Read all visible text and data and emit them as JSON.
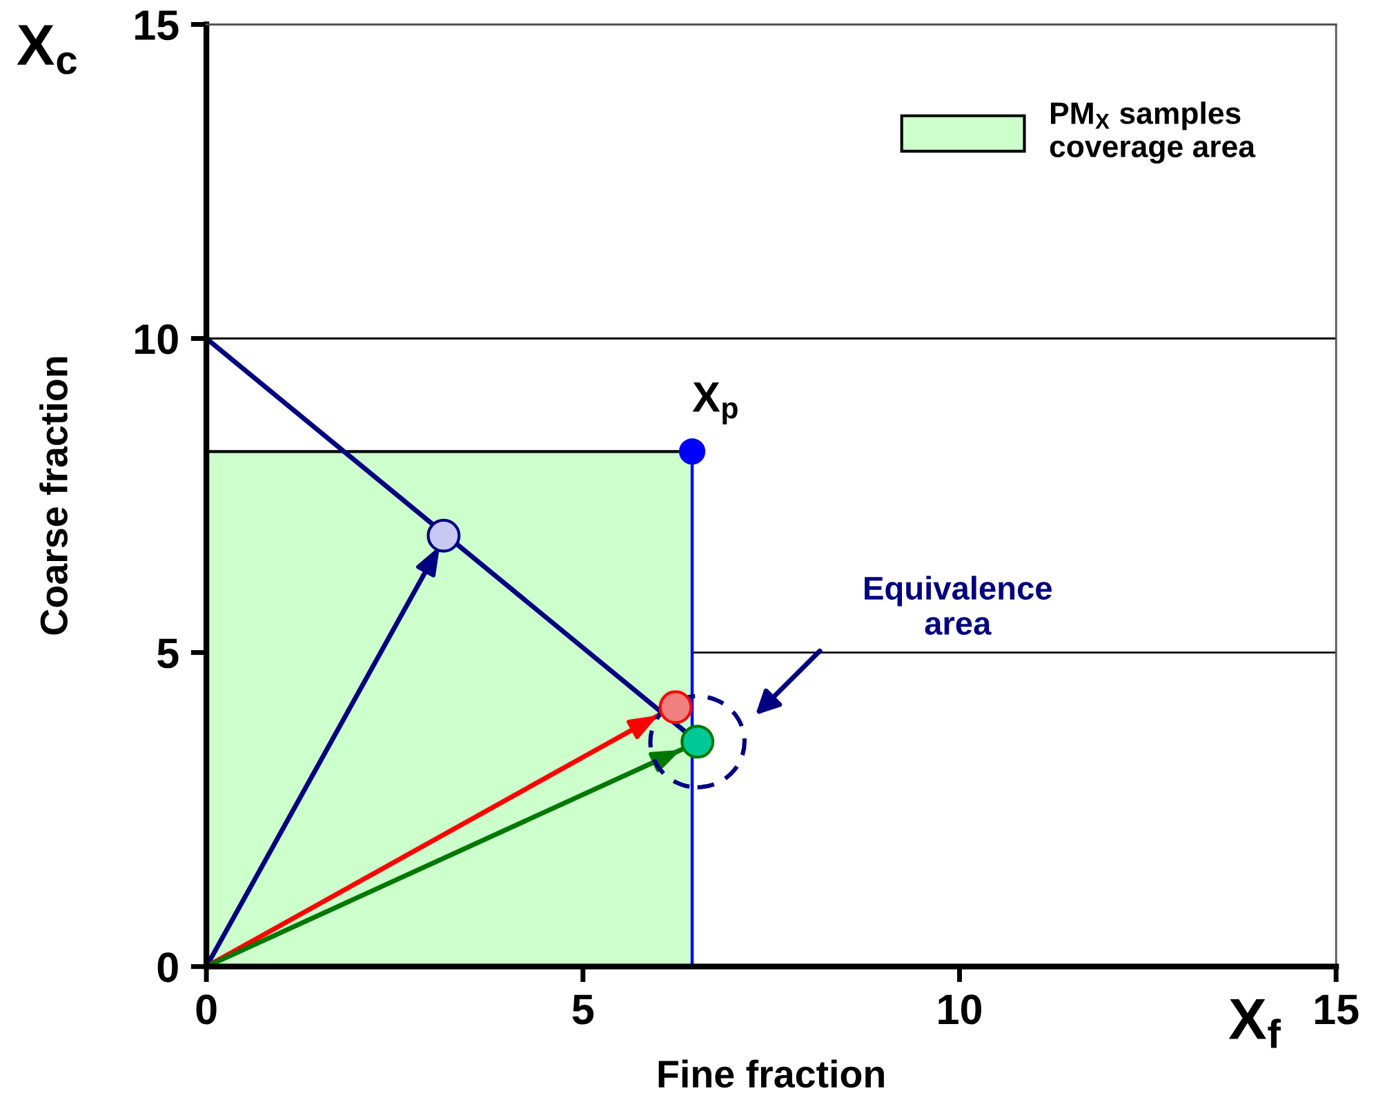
{
  "chart_data": {
    "type": "line",
    "xlabel": "Fine fraction",
    "ylabel": "Coarse fraction",
    "xlim": [
      0,
      15
    ],
    "ylim": [
      0,
      15
    ],
    "xticks": [
      0,
      5,
      10,
      15
    ],
    "yticks": [
      0,
      5,
      10,
      15
    ],
    "grid": "y",
    "legend": "top right",
    "series": [
      {
        "type": "area",
        "name": "PM$_{X}$ samples\ncoverage area",
        "color": "#ccffcc",
        "x": [
          0,
          6.45
        ],
        "values": [
          8.2,
          8.2
        ]
      },
      {
        "color": "#0000ff",
        "x": [
          6.45,
          6.45
        ],
        "values": [
          0,
          8.2
        ]
      },
      {
        "color": "#000080",
        "x": [
          0,
          6.5
        ],
        "values": [
          10,
          3.6
        ]
      },
      {
        "color": "#000080",
        "x": [
          0,
          3.1
        ],
        "values": [
          0,
          6.7
        ]
      },
      {
        "color": "#ff0000",
        "x": [
          0,
          6.0
        ],
        "values": [
          0,
          4.0
        ]
      },
      {
        "color": "#007800",
        "x": [
          0,
          6.3
        ],
        "values": [
          0,
          3.45
        ]
      },
      {
        "type": "scatter",
        "name": "X$_{p}$",
        "color": "#0000ff",
        "x": [
          6.45
        ],
        "values": [
          8.2
        ]
      },
      {
        "type": "scatter",
        "color": "#c8c8f5",
        "x": [
          3.15
        ],
        "values": [
          6.86
        ]
      },
      {
        "type": "scatter",
        "color": "#f08080",
        "x": [
          6.23
        ],
        "values": [
          4.13
        ]
      },
      {
        "type": "scatter",
        "color": "#00c896",
        "x": [
          6.52
        ],
        "values": [
          3.58
        ]
      }
    ],
    "annotations": [
      "X$_{c}$",
      "X$_{f}$",
      "Equivalence\narea"
    ]
  }
}
